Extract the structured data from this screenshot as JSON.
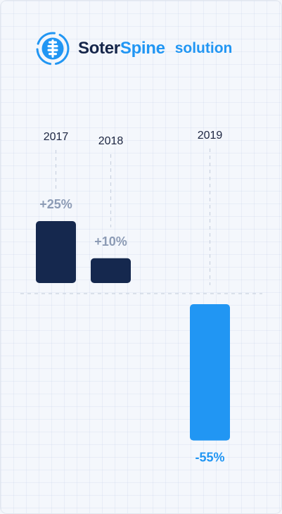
{
  "header": {
    "brand_part1": "Soter",
    "brand_part2": "Spine",
    "suffix": "solution"
  },
  "colors": {
    "dark": "#15284e",
    "blue": "#2196f3",
    "muted_label": "#8c9bb5",
    "guide": "#c9d2e0"
  },
  "chart_data": {
    "type": "bar",
    "title": "",
    "categories": [
      "2017",
      "2018",
      "2019"
    ],
    "values": [
      25,
      10,
      -55
    ],
    "labels": [
      "+25%",
      "+10%",
      "-55%"
    ],
    "bar_colors": [
      "#15284e",
      "#15284e",
      "#2196f3"
    ],
    "label_colors": [
      "#8c9bb5",
      "#8c9bb5",
      "#2196f3"
    ],
    "xlabel": "",
    "ylabel": "",
    "ylim": [
      -55,
      25
    ],
    "grid": false,
    "legend": "none"
  }
}
